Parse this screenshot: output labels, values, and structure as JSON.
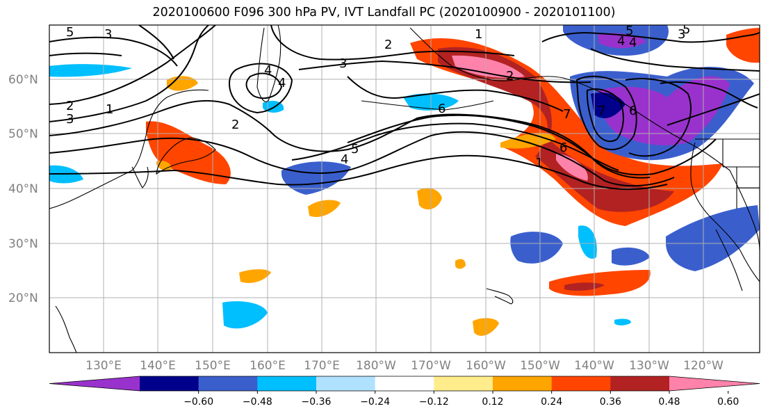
{
  "title": "2020100600 F096 300 hPa PV, IVT Landfall PC (2020100900 - 2020101100)",
  "map": {
    "lat_ticks": [
      "60°N",
      "50°N",
      "40°N",
      "30°N",
      "20°N"
    ],
    "lon_ticks": [
      "130°E",
      "140°E",
      "150°E",
      "160°E",
      "170°E",
      "180°W",
      "170°W",
      "160°W",
      "150°W",
      "140°W",
      "130°W",
      "120°W"
    ],
    "contour_labels": [
      "5",
      "3",
      "2",
      "1",
      "3",
      "2",
      "4",
      "4",
      "2",
      "3",
      "1",
      "2",
      "3",
      "6",
      "5",
      "4",
      "6",
      "7",
      "5",
      "4",
      "5",
      "4",
      "6",
      "7",
      "1"
    ]
  },
  "colorbar": {
    "ticks": [
      "−0.60",
      "−0.48",
      "−0.36",
      "−0.24",
      "−0.12",
      "0.12",
      "0.24",
      "0.36",
      "0.48",
      "0.60"
    ],
    "colors": [
      "#9932cc",
      "#00008b",
      "#3a5fcd",
      "#00bfff",
      "#b0e2ff",
      "#ffffff",
      "#ffec8b",
      "#ffa500",
      "#ff4500",
      "#b22222",
      "#ff82ab"
    ]
  }
}
